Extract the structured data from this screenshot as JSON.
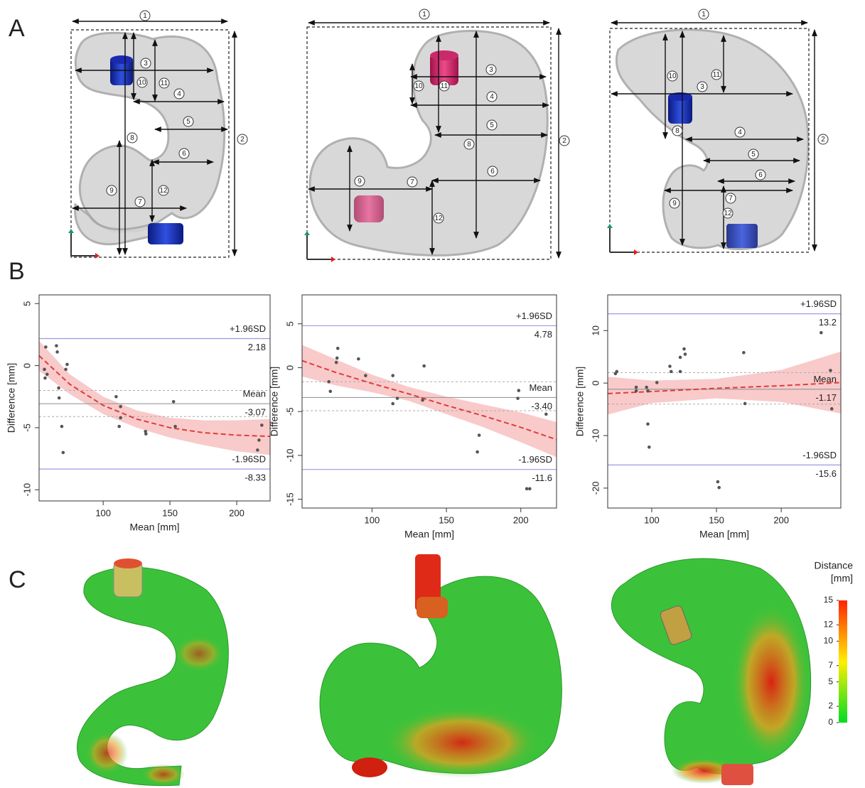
{
  "panel_labels": [
    "A",
    "B",
    "C"
  ],
  "panel_a": [
    {
      "labels": [
        "1",
        "2",
        "3",
        "4",
        "5",
        "6",
        "7",
        "8",
        "9",
        "10",
        "11",
        "12"
      ]
    },
    {
      "labels": [
        "1",
        "2",
        "3",
        "4",
        "5",
        "6",
        "7",
        "8",
        "9",
        "10",
        "11",
        "12"
      ]
    },
    {
      "labels": [
        "1",
        "2",
        "3",
        "4",
        "5",
        "6",
        "7",
        "8",
        "9",
        "10",
        "11",
        "12"
      ]
    }
  ],
  "chart_data": [
    {
      "type": "scatter",
      "xlabel": "Mean [mm]",
      "ylabel": "Difference [mm]",
      "xlim": [
        52,
        225
      ],
      "ylim": [
        -10.9,
        5.7
      ],
      "xticks": [
        100,
        150,
        200
      ],
      "yticks": [
        5,
        0,
        -5,
        -10
      ],
      "series": [
        {
          "color": "#555555",
          "x": [
            57,
            65,
            65.6,
            56,
            58,
            56.5,
            66.7,
            67,
            73,
            72,
            69,
            70,
            109.7,
            113,
            112,
            113,
            131.7,
            132,
            152.7,
            154,
            215.6,
            216.7,
            218.8
          ],
          "values": [
            1.5,
            1.6,
            1.1,
            -0.3,
            -0.7,
            -1,
            -1.8,
            -2.6,
            0.1,
            -0.3,
            -4.9,
            -7.0,
            -2.5,
            -3.3,
            -4.9,
            -4.2,
            -5.3,
            -5.5,
            -2.9,
            -4.9,
            -6.8,
            -6,
            -4.8
          ]
        }
      ],
      "trend": {
        "color": "#e03c3c",
        "band_color": "#f9caca",
        "x": [
          52,
          75,
          100,
          125,
          150,
          175,
          200,
          225
        ],
        "values": [
          0.8,
          -1.5,
          -3.2,
          -4.3,
          -5.0,
          -5.4,
          -5.6,
          -5.7
        ],
        "upper": [
          2,
          -0.7,
          -2.5,
          -3.6,
          -4.2,
          -4.4,
          -4.4,
          -4.3
        ],
        "lower": [
          -0.4,
          -2.3,
          -3.9,
          -5.0,
          -5.8,
          -6.4,
          -6.9,
          -7.2
        ]
      },
      "reference_lines": [
        {
          "name": "+1.96SD",
          "value": 2.18,
          "color": "#9a9ae6"
        },
        {
          "name": "Mean",
          "value": -3.07,
          "color": "#999999"
        },
        {
          "name": "-1.96SD",
          "value": -8.33,
          "color": "#9a9ae6"
        }
      ],
      "mean_ci": [
        -2.0,
        -4.1
      ]
    },
    {
      "type": "scatter",
      "xlabel": "Mean [mm]",
      "ylabel": "Difference [mm]",
      "xlim": [
        53,
        224
      ],
      "ylim": [
        -16,
        8.3
      ],
      "xticks": [
        100,
        150,
        200
      ],
      "yticks": [
        5,
        0,
        -5,
        -10,
        -15
      ],
      "series": [
        {
          "color": "#555555",
          "x": [
            77,
            76.5,
            76,
            71,
            72,
            90.9,
            95.7,
            114,
            114,
            117,
            135,
            134,
            170.8,
            172,
            198.6,
            198,
            204,
            206,
            217
          ],
          "values": [
            2.2,
            1.1,
            0.6,
            -1.6,
            -2.7,
            1,
            -0.9,
            -0.9,
            -4.1,
            -3.5,
            0.2,
            -3.7,
            -9.6,
            -7.7,
            -2.6,
            -3.5,
            -13.8,
            -13.8,
            -5.3
          ]
        }
      ],
      "trend": {
        "color": "#e03c3c",
        "band_color": "#f9caca",
        "x": [
          53,
          75,
          100,
          125,
          150,
          175,
          200,
          224
        ],
        "values": [
          0.8,
          -0.5,
          -1.8,
          -3.0,
          -4.3,
          -5.5,
          -6.8,
          -8.2
        ],
        "upper": [
          2.6,
          1.0,
          -0.8,
          -2.2,
          -3.3,
          -4.2,
          -5.1,
          -6.2
        ],
        "lower": [
          -1.0,
          -2.0,
          -2.8,
          -3.8,
          -5.3,
          -6.8,
          -8.5,
          -10.2
        ]
      },
      "reference_lines": [
        {
          "name": "+1.96SD",
          "value": 4.78,
          "color": "#9a9ae6"
        },
        {
          "name": "Mean",
          "value": -3.4,
          "value_label": "-3.40",
          "color": "#999999"
        },
        {
          "name": "-1.96SD",
          "value": -11.6,
          "color": "#9a9ae6"
        }
      ],
      "mean_ci": [
        -1.6,
        -4.9
      ]
    },
    {
      "type": "scatter",
      "xlabel": "Mean [mm]",
      "ylabel": "Difference [mm]",
      "xlim": [
        66,
        246
      ],
      "ylim": [
        -23.8,
        16.8
      ],
      "xticks": [
        100,
        150,
        200
      ],
      "yticks": [
        10,
        0,
        -10,
        -20
      ],
      "series": [
        {
          "color": "#555555",
          "x": [
            73,
            72,
            88,
            88,
            96,
            97,
            97,
            98,
            104,
            114,
            115,
            122,
            125,
            125.8,
            122,
            171,
            172,
            151,
            152,
            230.8,
            238,
            239
          ],
          "values": [
            2.2,
            1.8,
            -0.8,
            -1.5,
            -0.8,
            -1.5,
            -7.8,
            -12.2,
            0.1,
            3.2,
            2.2,
            4.9,
            6.5,
            5.5,
            2.2,
            5.8,
            -3.9,
            -18.8,
            -19.9,
            9.6,
            2.4,
            -4.9
          ]
        }
      ],
      "trend": {
        "color": "#e03c3c",
        "band_color": "#f9caca",
        "x": [
          66,
          100,
          150,
          200,
          246
        ],
        "values": [
          -2.0,
          -1.6,
          -1.0,
          -0.5,
          0.1
        ],
        "upper": [
          1.2,
          0.5,
          0.8,
          2.5,
          6.0
        ],
        "lower": [
          -6.0,
          -3.8,
          -2.9,
          -3.6,
          -5.8
        ]
      },
      "reference_lines": [
        {
          "name": "+1.96SD",
          "value": 13.2,
          "color": "#9a9ae6"
        },
        {
          "name": "Mean",
          "value": -1.17,
          "color": "#999999"
        },
        {
          "name": "-1.96SD",
          "value": -15.6,
          "color": "#9a9ae6"
        }
      ],
      "mean_ci": [
        2.0,
        -4.0
      ]
    }
  ],
  "colorbar": {
    "title": "Distance",
    "unit": "[mm]",
    "ylim": [
      0,
      15
    ],
    "ticks": [
      15,
      12,
      10,
      7,
      5,
      2,
      0
    ],
    "colors": [
      "#00dd22",
      "#ffee00",
      "#ff2200"
    ]
  }
}
